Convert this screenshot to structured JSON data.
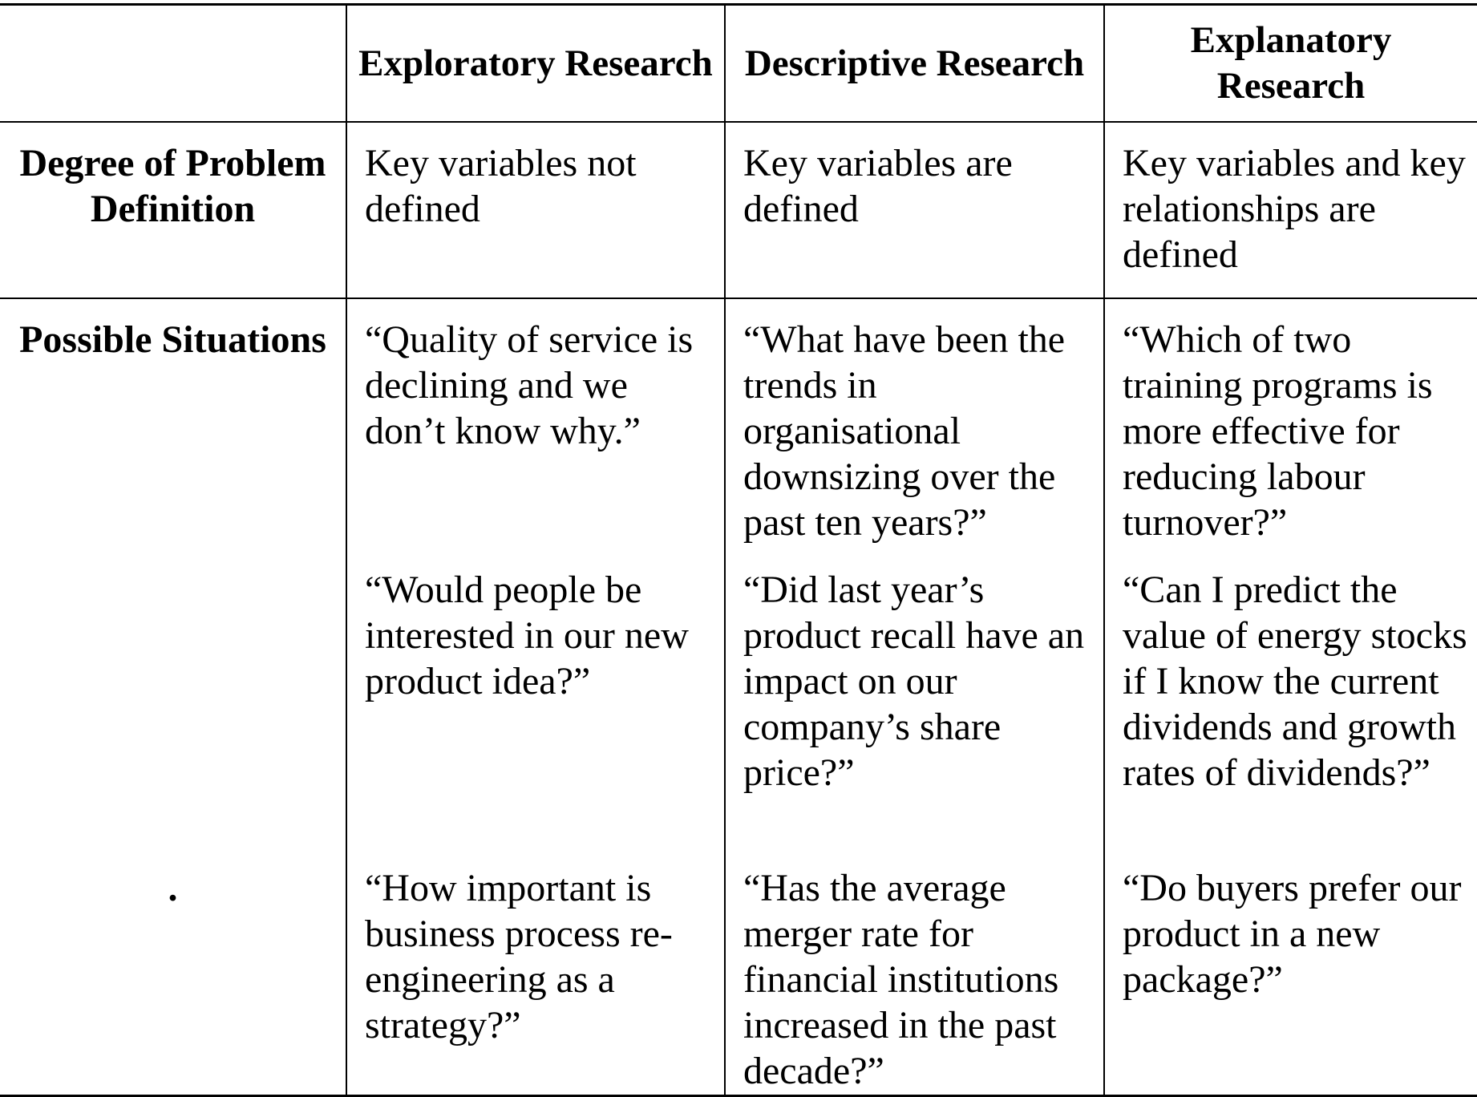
{
  "table": {
    "headers": [
      "",
      "Exploratory Research",
      "Descriptive Research",
      "Explanatory Research"
    ],
    "rows": [
      {
        "label": "Degree of Problem Definition",
        "cells": [
          "Key variables not defined",
          "Key variables are defined",
          "Key variables and key relationships are defined"
        ]
      },
      {
        "label": "Possible Situations",
        "cells": [
          "“Quality of service is declining and we don’t know why.”",
          "“What have been the trends in organisational downsizing over the past ten years?”",
          "“Which of two training programs is more effective for reducing labour turnover?”"
        ]
      },
      {
        "label": "",
        "cells": [
          "“Would people be interested in our new product idea?”",
          "“Did last year’s product recall have an impact on our company’s share price?”",
          "“Can I predict the value of energy stocks if I know the current dividends and growth rates of dividends?”"
        ]
      },
      {
        "label": ".",
        "cells": [
          "“How important is business process re-engineering as a strategy?”",
          "“Has the average merger rate for financial institutions increased in the past decade?”",
          "“Do buyers prefer our product in a new package?”"
        ]
      }
    ]
  }
}
